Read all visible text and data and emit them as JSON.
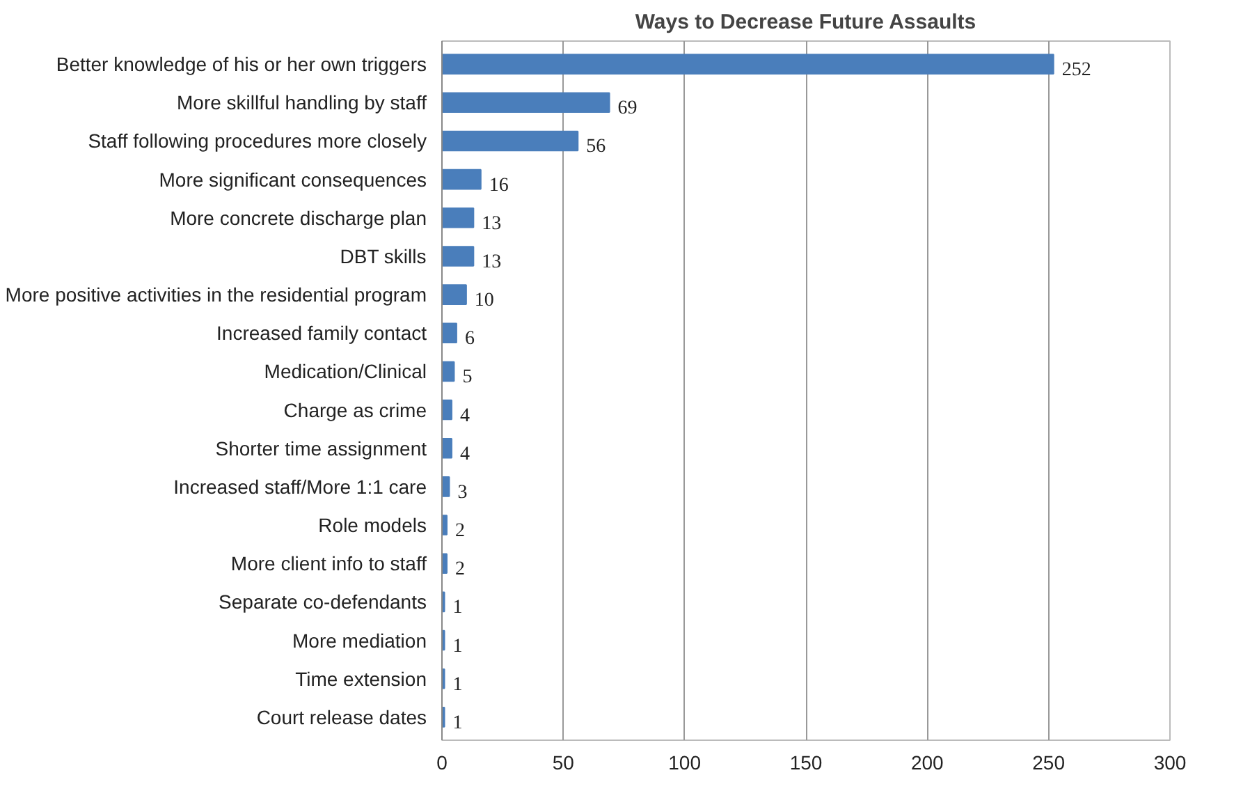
{
  "chart_data": {
    "type": "bar",
    "orientation": "horizontal",
    "title": "Ways to Decrease Future Assaults",
    "categories": [
      "Better knowledge of his or her own triggers",
      "More skillful handling by staff",
      "Staff following procedures more closely",
      "More significant consequences",
      "More concrete discharge plan",
      "DBT skills",
      "More positive activities in the residential program",
      "Increased family contact",
      "Medication/Clinical",
      "Charge as crime",
      "Shorter time assignment",
      "Increased staff/More 1:1 care",
      "Role models",
      "More client info to staff",
      "Separate co-defendants",
      "More mediation",
      "Time extension",
      "Court release dates"
    ],
    "values": [
      252,
      69,
      56,
      16,
      13,
      13,
      10,
      6,
      5,
      4,
      4,
      3,
      2,
      2,
      1,
      1,
      1,
      1
    ],
    "color": "#4a7ebb",
    "xlim": [
      0,
      300
    ],
    "xticks": [
      0,
      50,
      100,
      150,
      200,
      250,
      300
    ],
    "grid": "x",
    "data_labels": true
  }
}
